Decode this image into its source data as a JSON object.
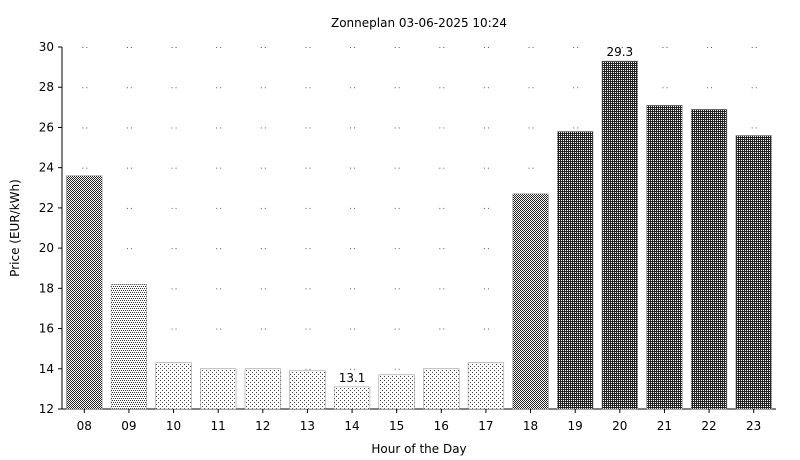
{
  "chart_data": {
    "type": "bar",
    "title": "Zonneplan 03-06-2025 10:24",
    "xlabel": "Hour of the Day",
    "ylabel": "Price (EUR/kWh)",
    "ylim": [
      12,
      30
    ],
    "yticks": [
      12,
      14,
      16,
      18,
      20,
      22,
      24,
      26,
      28,
      30
    ],
    "categories": [
      "08",
      "09",
      "10",
      "11",
      "12",
      "13",
      "14",
      "15",
      "16",
      "17",
      "18",
      "19",
      "20",
      "21",
      "22",
      "23"
    ],
    "values": [
      23.6,
      18.2,
      14.3,
      14.0,
      14.0,
      13.9,
      13.1,
      13.7,
      14.0,
      14.3,
      22.7,
      25.8,
      29.3,
      27.1,
      26.9,
      25.6
    ],
    "annotations": [
      {
        "category": "14",
        "text": "13.1"
      },
      {
        "category": "20",
        "text": "29.3"
      }
    ],
    "grid": "dotted",
    "legend": "none",
    "shading": "darker for higher prices"
  }
}
